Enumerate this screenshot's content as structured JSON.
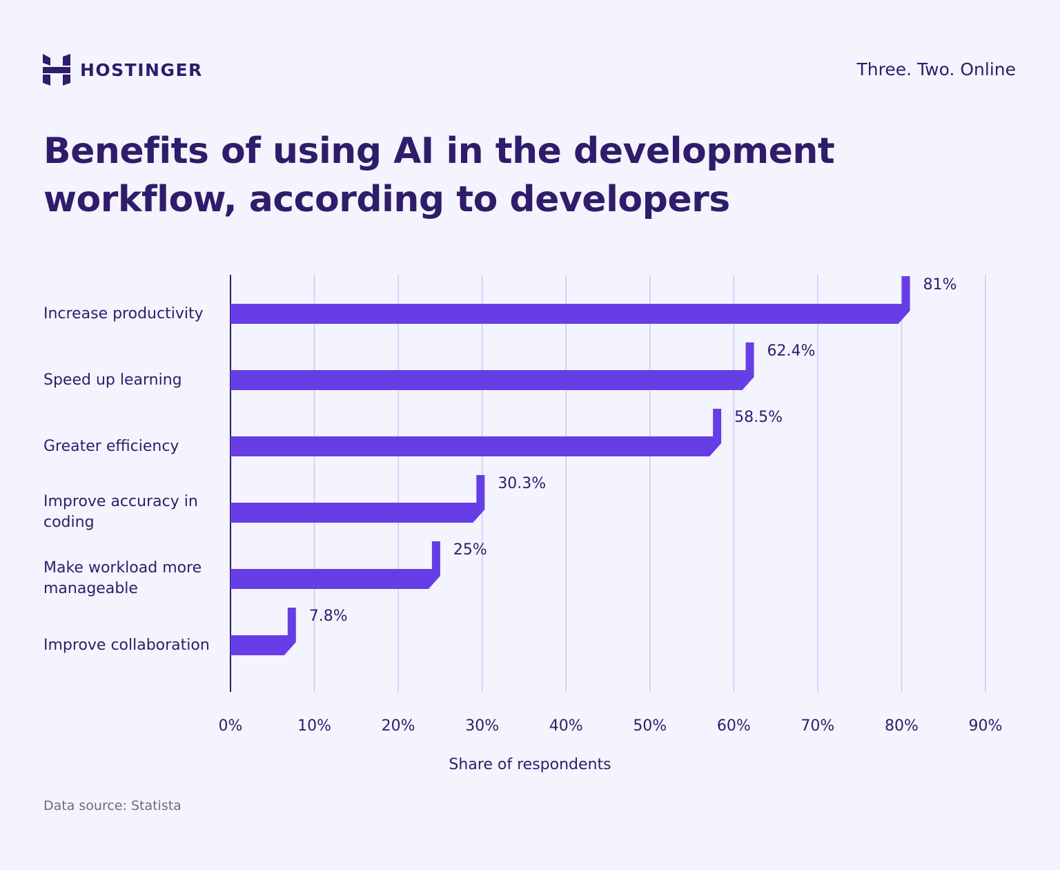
{
  "header": {
    "brand": "HOSTINGER",
    "tagline": "Three. Two. Online"
  },
  "title": "Benefits of using AI in the development workflow, according to developers",
  "source": "Data source: Statista",
  "colors": {
    "bar": "#673de6",
    "text": "#2f1c6a",
    "grid": "#cdc7f7",
    "background": "#f4f4fe"
  },
  "chart_data": {
    "type": "bar",
    "orientation": "horizontal",
    "categories": [
      [
        "Increase productivity"
      ],
      [
        "Speed up learning"
      ],
      [
        "Greater efficiency"
      ],
      [
        "Improve accuracy in",
        "coding"
      ],
      [
        "Make workload more",
        "manageable"
      ],
      [
        "Improve collaboration"
      ]
    ],
    "values": [
      81,
      62.4,
      58.5,
      30.3,
      25,
      7.8
    ],
    "data_labels": [
      "81%",
      "62.4%",
      "58.5%",
      "30.3%",
      "25%",
      "7.8%"
    ],
    "xlabel": "Share of respondents",
    "xlim": [
      0,
      90
    ],
    "xticks": [
      "0%",
      "10%",
      "20%",
      "30%",
      "40%",
      "50%",
      "60%",
      "70%",
      "80%",
      "90%"
    ],
    "grid": true
  }
}
